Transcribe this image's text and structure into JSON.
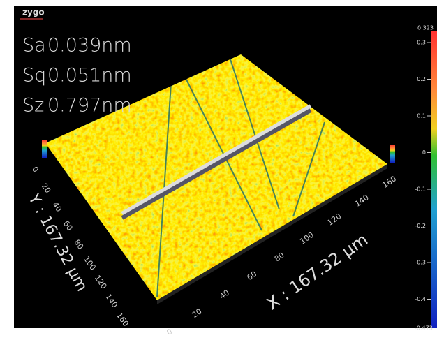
{
  "logo": "zygo",
  "stats": [
    {
      "label": "Sa",
      "value": "0.039nm"
    },
    {
      "label": "Sq",
      "value": "0.051nm"
    },
    {
      "label": "Sz",
      "value": "0.797nm"
    }
  ],
  "x_axis": {
    "title": "X : 167.32 μm",
    "ticks": [
      "0",
      "20",
      "40",
      "60",
      "80",
      "100",
      "120",
      "140",
      "160"
    ]
  },
  "y_axis": {
    "title": "Y : 167.32 μm",
    "ticks": [
      "0",
      "20",
      "40",
      "60",
      "80",
      "100",
      "120",
      "140",
      "160"
    ]
  },
  "colorbar": {
    "max": "0.323",
    "min": "-0.473",
    "ticks": [
      "0.3",
      "0.2",
      "0.1",
      "0",
      "-0.1",
      "-0.2",
      "-0.3",
      "-0.4"
    ]
  }
}
